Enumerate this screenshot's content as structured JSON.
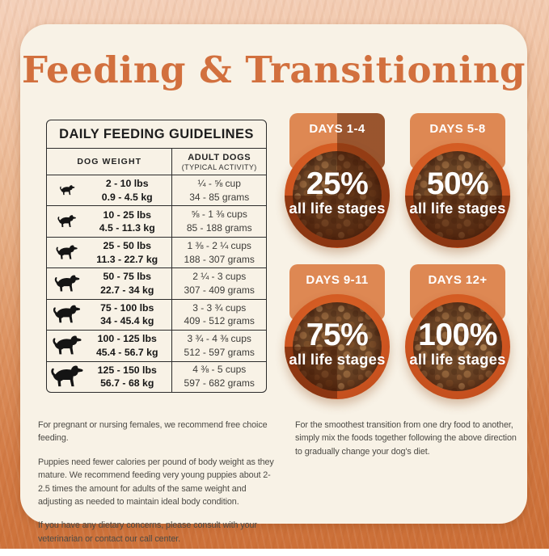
{
  "page": {
    "title": "Feeding & Transitioning"
  },
  "table": {
    "title": "DAILY FEEDING GUIDELINES",
    "columns": {
      "weight": "DOG WEIGHT",
      "adult_line1": "ADULT DOGS",
      "adult_line2": "(TYPICAL ACTIVITY)"
    },
    "rows": [
      {
        "lbs": "2 - 10 lbs",
        "kg": "0.9 - 4.5 kg",
        "cups": "¼ - ⅝ cup",
        "grams": "34 - 85 grams",
        "icon_w": "21"
      },
      {
        "lbs": "10 - 25 lbs",
        "kg": "4.5 - 11.3 kg",
        "cups": "⅝ - 1 ⅜ cups",
        "grams": "85 - 188 grams",
        "icon_w": "26"
      },
      {
        "lbs": "25 - 50 lbs",
        "kg": "11.3 - 22.7 kg",
        "cups": "1 ⅜ - 2 ¼ cups",
        "grams": "188 - 307 grams",
        "icon_w": "30"
      },
      {
        "lbs": "50 - 75 lbs",
        "kg": "22.7 - 34 kg",
        "cups": "2 ¼ - 3 cups",
        "grams": "307 - 409 grams",
        "icon_w": "35"
      },
      {
        "lbs": "75 - 100 lbs",
        "kg": "34 - 45.4 kg",
        "cups": "3 - 3 ¾ cups",
        "grams": "409 - 512 grams",
        "icon_w": "38"
      },
      {
        "lbs": "100 - 125 lbs",
        "kg": "45.4 - 56.7 kg",
        "cups": "3 ¾ - 4 ⅜ cups",
        "grams": "512 - 597 grams",
        "icon_w": "41"
      },
      {
        "lbs": "125 - 150 lbs",
        "kg": "56.7 - 68 kg",
        "cups": "4 ⅜ - 5 cups",
        "grams": "597 - 682 grams",
        "icon_w": "45"
      }
    ]
  },
  "transition": {
    "tiles": [
      {
        "days": "DAYS 1-4",
        "percent": "25%",
        "label": "all life stages",
        "fraction": 25
      },
      {
        "days": "DAYS 5-8",
        "percent": "50%",
        "label": "all life stages",
        "fraction": 50
      },
      {
        "days": "DAYS 9-11",
        "percent": "75%",
        "label": "all life stages",
        "fraction": 75
      },
      {
        "days": "DAYS 12+",
        "percent": "100%",
        "label": "all life stages",
        "fraction": 100
      }
    ]
  },
  "notes_left": [
    "For pregnant or nursing females, we recommend free choice feeding.",
    "Puppies need fewer calories per pound of body weight as they mature. We recommend feeding very young puppies about 2-2.5 times the amount for adults of the same weight and adjusting as needed to maintain ideal body condition.",
    "If you have any dietary concerns, please consult with your veterinarian or contact our call center."
  ],
  "notes_right": [
    "For the smoothest transition from one dry food to another, simply mix the foods together following the above direction to gradually change your dog's diet."
  ],
  "colors": {
    "accent": "#D2703E",
    "tab": "#DE8853",
    "bowl_rim": "#D0571F",
    "shade": "rgba(70,23,2,0.45)",
    "card_bg": "#F8F2E6"
  }
}
